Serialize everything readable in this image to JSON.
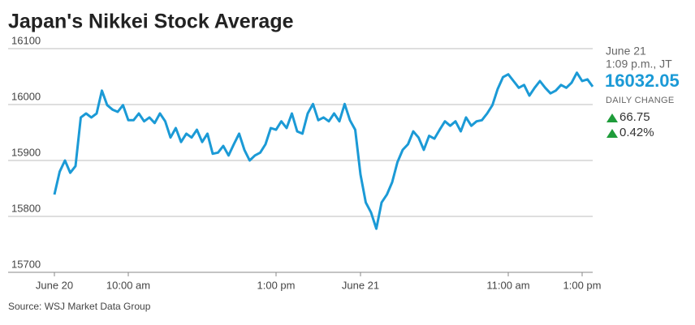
{
  "chart_data": {
    "type": "line",
    "title": "Japan's Nikkei Stock Average",
    "source": "Source: WSJ Market Data Group",
    "panel": {
      "date": "June 21",
      "time": "1:09 p.m., JT",
      "last": "16032.05",
      "change_label": "DAILY CHANGE",
      "change": "66.75",
      "change_pct": "0.42%"
    },
    "categories": [
      "June 20",
      null,
      null,
      null,
      null,
      null,
      null,
      null,
      null,
      null,
      null,
      null,
      null,
      null,
      "10:00 am",
      null,
      null,
      null,
      null,
      null,
      null,
      null,
      null,
      null,
      null,
      null,
      null,
      null,
      null,
      null,
      null,
      null,
      null,
      null,
      null,
      null,
      null,
      null,
      null,
      null,
      null,
      null,
      "1:00 pm",
      null,
      null,
      null,
      null,
      null,
      null,
      null,
      null,
      null,
      null,
      null,
      null,
      null,
      null,
      null,
      "June 21",
      null,
      null,
      null,
      null,
      null,
      null,
      null,
      null,
      null,
      null,
      null,
      null,
      null,
      null,
      null,
      null,
      null,
      null,
      null,
      null,
      null,
      null,
      null,
      null,
      null,
      null,
      null,
      "11:00 am",
      null,
      null,
      null,
      null,
      null,
      null,
      null,
      null,
      null,
      null,
      null,
      null,
      null,
      "1:00 pm",
      null,
      null
    ],
    "values": [
      15839,
      15880,
      15900,
      15878,
      15890,
      15977,
      15984,
      15977,
      15984,
      16025,
      15999,
      15991,
      15987,
      15999,
      15972,
      15972,
      15984,
      15970,
      15977,
      15967,
      15984,
      15970,
      15941,
      15958,
      15933,
      15948,
      15941,
      15955,
      15933,
      15948,
      15912,
      15914,
      15926,
      15909,
      15929,
      15948,
      15919,
      15900,
      15909,
      15914,
      15929,
      15958,
      15955,
      15970,
      15958,
      15984,
      15952,
      15948,
      15984,
      16001,
      15972,
      15977,
      15970,
      15984,
      15970,
      16001,
      15972,
      15955,
      15875,
      15825,
      15807,
      15778,
      15825,
      15839,
      15861,
      15897,
      15919,
      15929,
      15952,
      15941,
      15919,
      15944,
      15939,
      15955,
      15970,
      15962,
      15970,
      15952,
      15977,
      15962,
      15970,
      15972,
      15984,
      15999,
      16028,
      16049,
      16054,
      16042,
      16030,
      16035,
      16016,
      16030,
      16042,
      16030,
      16020,
      16025,
      16035,
      16030,
      16039,
      16057,
      16042,
      16045,
      16032.05
    ],
    "color": "#1b9ad6",
    "ylim": [
      15700,
      16100
    ],
    "yticks": [
      15700,
      15800,
      15900,
      16000,
      16100
    ],
    "grid": true
  }
}
